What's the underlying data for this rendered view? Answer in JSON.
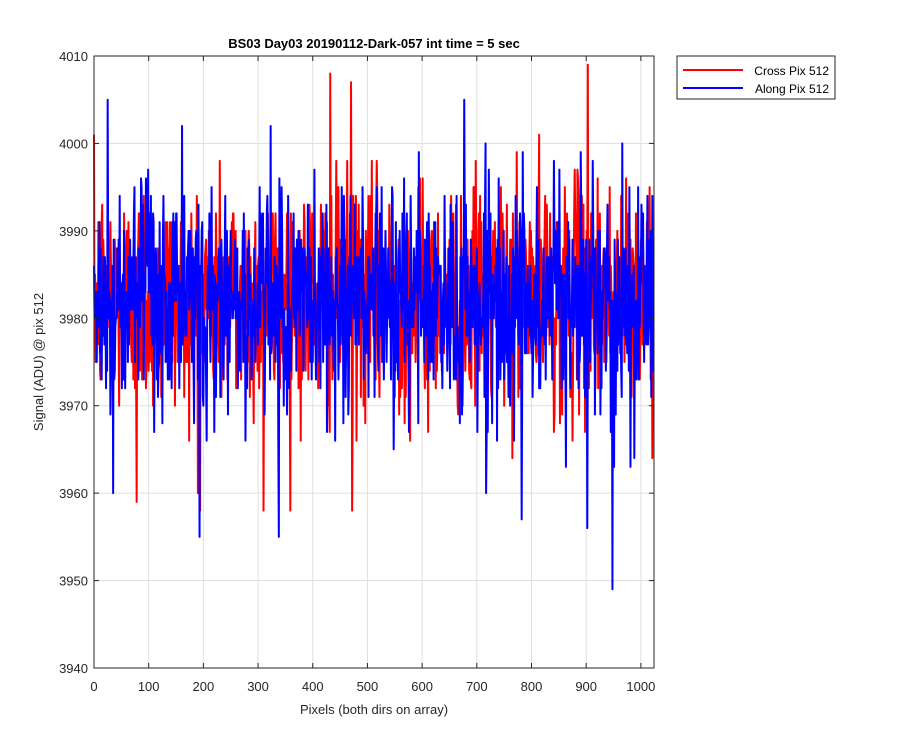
{
  "chart_data": {
    "type": "line",
    "title": "BS03 Day03 20190112-Dark-057 int time = 5 sec",
    "xlabel": "Pixels (both dirs on array)",
    "ylabel": "Signal (ADU) @ pix 512",
    "xlim": [
      0,
      1024
    ],
    "ylim": [
      3940,
      4010
    ],
    "xticks": [
      0,
      100,
      200,
      300,
      400,
      500,
      600,
      700,
      800,
      900,
      1000
    ],
    "yticks": [
      3940,
      3950,
      3960,
      3970,
      3980,
      3990,
      4000,
      4010
    ],
    "grid": true,
    "legend_position": "outside-top-right",
    "n_points": 1024,
    "series": [
      {
        "name": "Cross Pix 512",
        "color": "#ff0000",
        "mean": 3982.5,
        "std": 6.6,
        "min": 3958,
        "max": 4009,
        "notable_points": [
          [
            78,
            3959
          ],
          [
            190,
            3960
          ],
          [
            310,
            3958
          ],
          [
            432,
            4008
          ],
          [
            470,
            4007
          ],
          [
            472,
            3958
          ],
          [
            903,
            4009
          ]
        ]
      },
      {
        "name": "Along Pix 512",
        "color": "#0000ff",
        "mean": 3982.0,
        "std": 6.6,
        "min": 3949,
        "max": 4005,
        "notable_points": [
          [
            25,
            4005
          ],
          [
            35,
            3960
          ],
          [
            193,
            3955
          ],
          [
            338,
            3955
          ],
          [
            782,
            3957
          ],
          [
            902,
            3956
          ],
          [
            948,
            3949
          ],
          [
            966,
            4000
          ]
        ]
      }
    ]
  }
}
